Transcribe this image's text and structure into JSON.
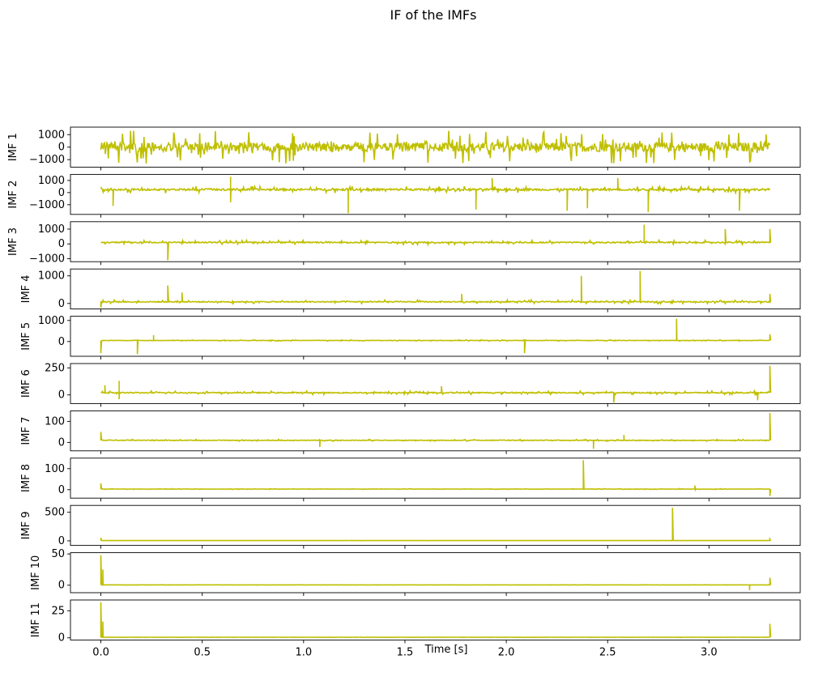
{
  "figure": {
    "title": "IF of the IMFs"
  },
  "chart_data": {
    "type": "line",
    "title": "IF of the IMFs",
    "xlabel": "Time [s]",
    "x_range": [
      0,
      3.3
    ],
    "xlim": [
      -0.15,
      3.45
    ],
    "x_ticks": [
      {
        "value": 0.0,
        "label": "0.0"
      },
      {
        "value": 0.5,
        "label": "0.5"
      },
      {
        "value": 1.0,
        "label": "1.0"
      },
      {
        "value": 1.5,
        "label": "1.5"
      },
      {
        "value": 2.0,
        "label": "2.0"
      },
      {
        "value": 2.5,
        "label": "2.5"
      },
      {
        "value": 3.0,
        "label": "3.0"
      }
    ],
    "line_color": "#bfbf00",
    "grid": false,
    "panels": [
      {
        "ylabel": "IMF 1",
        "ylim": [
          -1600,
          1600
        ],
        "yticks": [
          {
            "value": 1000,
            "label": "1000"
          },
          {
            "value": 0,
            "label": "0"
          },
          {
            "value": -1000,
            "label": "−1000"
          }
        ],
        "baseline": 0,
        "noise": 1200,
        "clip": [
          -1400,
          1400
        ],
        "seed": 1,
        "spikes": []
      },
      {
        "ylabel": "IMF 2",
        "ylim": [
          -1800,
          1500
        ],
        "yticks": [
          {
            "value": 1000,
            "label": "1000"
          },
          {
            "value": 0,
            "label": "0"
          },
          {
            "value": -1000,
            "label": "−1000"
          }
        ],
        "baseline": 250,
        "noise": 260,
        "clip": [
          -1700,
          1400
        ],
        "seed": 2,
        "spikes": [
          [
            0.06,
            -1100
          ],
          [
            0.64,
            1300
          ],
          [
            0.64,
            -800
          ],
          [
            1.22,
            -1700
          ],
          [
            1.85,
            -1400
          ],
          [
            1.93,
            1200
          ],
          [
            2.3,
            -1500
          ],
          [
            2.4,
            -1300
          ],
          [
            2.7,
            -1600
          ],
          [
            3.15,
            -1500
          ],
          [
            2.55,
            1200
          ]
        ]
      },
      {
        "ylabel": "IMF 3",
        "ylim": [
          -1200,
          1500
        ],
        "yticks": [
          {
            "value": 1000,
            "label": "1000"
          },
          {
            "value": 0,
            "label": "0"
          },
          {
            "value": -1000,
            "label": "−1000"
          }
        ],
        "baseline": 100,
        "noise": 130,
        "clip": [
          -1100,
          1400
        ],
        "seed": 3,
        "spikes": [
          [
            0.33,
            -1100
          ],
          [
            2.68,
            1300
          ],
          [
            3.08,
            1000
          ],
          [
            3.3,
            1000
          ]
        ]
      },
      {
        "ylabel": "IMF 4",
        "ylim": [
          -200,
          1250
        ],
        "yticks": [
          {
            "value": 1000,
            "label": "1000"
          },
          {
            "value": 0,
            "label": "0"
          }
        ],
        "baseline": 60,
        "noise": 60,
        "clip": [
          -150,
          1200
        ],
        "seed": 4,
        "spikes": [
          [
            0.33,
            650
          ],
          [
            0.4,
            400
          ],
          [
            2.37,
            1000
          ],
          [
            2.66,
            1180
          ],
          [
            0.0,
            -150
          ],
          [
            1.78,
            350
          ],
          [
            3.3,
            350
          ]
        ]
      },
      {
        "ylabel": "IMF 5",
        "ylim": [
          -700,
          1200
        ],
        "yticks": [
          {
            "value": 1000,
            "label": "1000"
          },
          {
            "value": 0,
            "label": "0"
          }
        ],
        "baseline": 50,
        "noise": 30,
        "clip": [
          -600,
          1100
        ],
        "seed": 5,
        "spikes": [
          [
            0.0,
            -550
          ],
          [
            0.18,
            -600
          ],
          [
            0.26,
            300
          ],
          [
            2.09,
            -550
          ],
          [
            2.84,
            1080
          ],
          [
            3.3,
            350
          ]
        ]
      },
      {
        "ylabel": "IMF 6",
        "ylim": [
          -80,
          290
        ],
        "yticks": [
          {
            "value": 250,
            "label": "250"
          },
          {
            "value": 0,
            "label": "0"
          }
        ],
        "baseline": 20,
        "noise": 15,
        "clip": [
          -70,
          280
        ],
        "seed": 6,
        "spikes": [
          [
            0.02,
            90
          ],
          [
            0.09,
            130
          ],
          [
            0.09,
            -40
          ],
          [
            1.68,
            80
          ],
          [
            2.53,
            -70
          ],
          [
            3.24,
            -50
          ],
          [
            3.3,
            270
          ]
        ]
      },
      {
        "ylabel": "IMF 7",
        "ylim": [
          -40,
          150
        ],
        "yticks": [
          {
            "value": 100,
            "label": "100"
          },
          {
            "value": 0,
            "label": "0"
          }
        ],
        "baseline": 10,
        "noise": 4,
        "clip": [
          -30,
          145
        ],
        "seed": 7,
        "spikes": [
          [
            0.0,
            50
          ],
          [
            1.08,
            -22
          ],
          [
            2.43,
            -30
          ],
          [
            2.58,
            35
          ],
          [
            3.3,
            140
          ]
        ]
      },
      {
        "ylabel": "IMF 8",
        "ylim": [
          -40,
          150
        ],
        "yticks": [
          {
            "value": 100,
            "label": "100"
          },
          {
            "value": 0,
            "label": "0"
          }
        ],
        "baseline": 3,
        "noise": 2,
        "clip": [
          -30,
          145
        ],
        "seed": 8,
        "spikes": [
          [
            0.0,
            30
          ],
          [
            2.38,
            140
          ],
          [
            2.93,
            20
          ],
          [
            3.3,
            -30
          ]
        ]
      },
      {
        "ylabel": "IMF 9",
        "ylim": [
          -80,
          620
        ],
        "yticks": [
          {
            "value": 500,
            "label": "500"
          },
          {
            "value": 0,
            "label": "0"
          }
        ],
        "baseline": 5,
        "noise": 2,
        "clip": [
          -50,
          600
        ],
        "seed": 9,
        "spikes": [
          [
            0.0,
            50
          ],
          [
            2.82,
            580
          ],
          [
            3.3,
            30
          ]
        ]
      },
      {
        "ylabel": "IMF 10",
        "ylim": [
          -12,
          52
        ],
        "yticks": [
          {
            "value": 50,
            "label": "50"
          },
          {
            "value": 0,
            "label": "0"
          }
        ],
        "baseline": 0.5,
        "noise": 0.3,
        "clip": [
          -10,
          50
        ],
        "seed": 10,
        "spikes": [
          [
            0.0,
            48
          ],
          [
            0.01,
            25
          ],
          [
            3.2,
            -8
          ],
          [
            3.3,
            12
          ]
        ]
      },
      {
        "ylabel": "IMF 11",
        "ylim": [
          -2,
          35
        ],
        "yticks": [
          {
            "value": 25,
            "label": "25"
          },
          {
            "value": 0,
            "label": "0"
          }
        ],
        "baseline": 0.5,
        "noise": 0.2,
        "clip": [
          -1,
          34
        ],
        "seed": 11,
        "spikes": [
          [
            0.0,
            33
          ],
          [
            0.01,
            15
          ],
          [
            3.3,
            13
          ]
        ]
      }
    ]
  }
}
